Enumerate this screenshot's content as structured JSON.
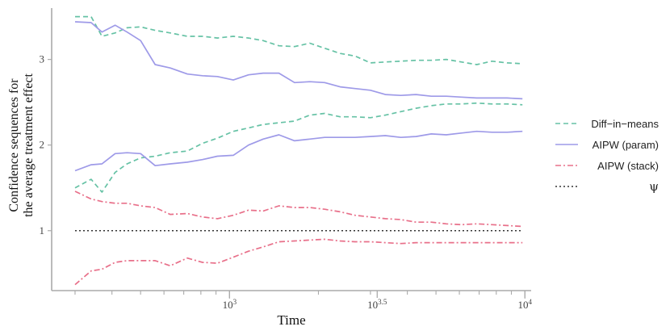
{
  "chart_data": {
    "type": "line",
    "xlabel": "Time",
    "ylabel_line1": "Confidence sequences for",
    "ylabel_line2": "the average treatment effect",
    "x_scale": "log10",
    "xlim": [
      250,
      10500
    ],
    "ylim": [
      0.3,
      3.6
    ],
    "x_ticks": [
      {
        "value": 1000,
        "base": "10",
        "exp": "3"
      },
      {
        "value": 3162.28,
        "base": "10",
        "exp": "3.5"
      },
      {
        "value": 10000,
        "base": "10",
        "exp": "4"
      }
    ],
    "y_ticks": [
      1,
      2,
      3
    ],
    "grid": false,
    "legend_placement": "right",
    "series": [
      {
        "name": "Diff−in−means",
        "color": "#66c2a5",
        "dash": "6,4",
        "bands": {
          "x": [
            300,
            340,
            370,
            410,
            450,
            500,
            560,
            630,
            720,
            810,
            910,
            1030,
            1160,
            1300,
            1470,
            1660,
            1870,
            2100,
            2370,
            2660,
            3000,
            3370,
            3800,
            4280,
            4820,
            5420,
            6100,
            6870,
            7740,
            8710,
            9810
          ],
          "upper": [
            3.5,
            3.5,
            3.27,
            3.31,
            3.37,
            3.38,
            3.34,
            3.31,
            3.27,
            3.27,
            3.25,
            3.27,
            3.25,
            3.22,
            3.16,
            3.15,
            3.19,
            3.13,
            3.07,
            3.04,
            2.96,
            2.97,
            2.98,
            2.99,
            2.99,
            3.0,
            2.97,
            2.94,
            2.98,
            2.96,
            2.95
          ],
          "lower": [
            1.5,
            1.6,
            1.45,
            1.68,
            1.78,
            1.85,
            1.87,
            1.91,
            1.93,
            2.02,
            2.08,
            2.16,
            2.2,
            2.24,
            2.26,
            2.28,
            2.35,
            2.37,
            2.33,
            2.33,
            2.32,
            2.35,
            2.39,
            2.43,
            2.46,
            2.48,
            2.48,
            2.49,
            2.48,
            2.48,
            2.47
          ]
        }
      },
      {
        "name": "AIPW (param)",
        "color": "#9e9ae8",
        "dash": "",
        "bands": {
          "x": [
            300,
            340,
            370,
            410,
            450,
            500,
            560,
            630,
            720,
            810,
            910,
            1030,
            1160,
            1300,
            1470,
            1660,
            1870,
            2100,
            2370,
            2660,
            3000,
            3370,
            3800,
            4280,
            4820,
            5420,
            6100,
            6870,
            7740,
            8710,
            9810
          ],
          "upper": [
            3.44,
            3.43,
            3.32,
            3.4,
            3.32,
            3.22,
            2.94,
            2.9,
            2.83,
            2.81,
            2.8,
            2.76,
            2.82,
            2.84,
            2.84,
            2.73,
            2.74,
            2.73,
            2.68,
            2.66,
            2.64,
            2.59,
            2.58,
            2.59,
            2.57,
            2.57,
            2.56,
            2.55,
            2.55,
            2.55,
            2.54
          ],
          "lower": [
            1.7,
            1.77,
            1.78,
            1.9,
            1.91,
            1.9,
            1.76,
            1.78,
            1.8,
            1.83,
            1.87,
            1.88,
            2.0,
            2.07,
            2.12,
            2.05,
            2.07,
            2.09,
            2.09,
            2.09,
            2.1,
            2.11,
            2.09,
            2.1,
            2.13,
            2.12,
            2.14,
            2.16,
            2.15,
            2.15,
            2.16
          ]
        }
      },
      {
        "name": "AIPW (stack)",
        "color": "#e8708a",
        "dash": "7,3,2,3",
        "bands": {
          "x": [
            300,
            340,
            370,
            410,
            450,
            500,
            560,
            630,
            720,
            810,
            910,
            1030,
            1160,
            1300,
            1470,
            1660,
            1870,
            2100,
            2370,
            2660,
            3000,
            3370,
            3800,
            4280,
            4820,
            5420,
            6100,
            6870,
            7740,
            8710,
            9810
          ],
          "upper": [
            1.46,
            1.37,
            1.34,
            1.32,
            1.32,
            1.29,
            1.27,
            1.19,
            1.2,
            1.16,
            1.14,
            1.18,
            1.24,
            1.23,
            1.29,
            1.27,
            1.27,
            1.25,
            1.22,
            1.18,
            1.16,
            1.14,
            1.13,
            1.1,
            1.1,
            1.08,
            1.07,
            1.08,
            1.07,
            1.06,
            1.05
          ],
          "lower": [
            0.37,
            0.53,
            0.55,
            0.63,
            0.65,
            0.65,
            0.65,
            0.59,
            0.68,
            0.63,
            0.62,
            0.69,
            0.76,
            0.81,
            0.87,
            0.88,
            0.89,
            0.9,
            0.88,
            0.87,
            0.87,
            0.86,
            0.85,
            0.86,
            0.86,
            0.86,
            0.86,
            0.86,
            0.86,
            0.86,
            0.86
          ]
        }
      },
      {
        "name": "ψ",
        "color": "#333333",
        "dash": "2,3",
        "value": 1.0
      }
    ]
  }
}
